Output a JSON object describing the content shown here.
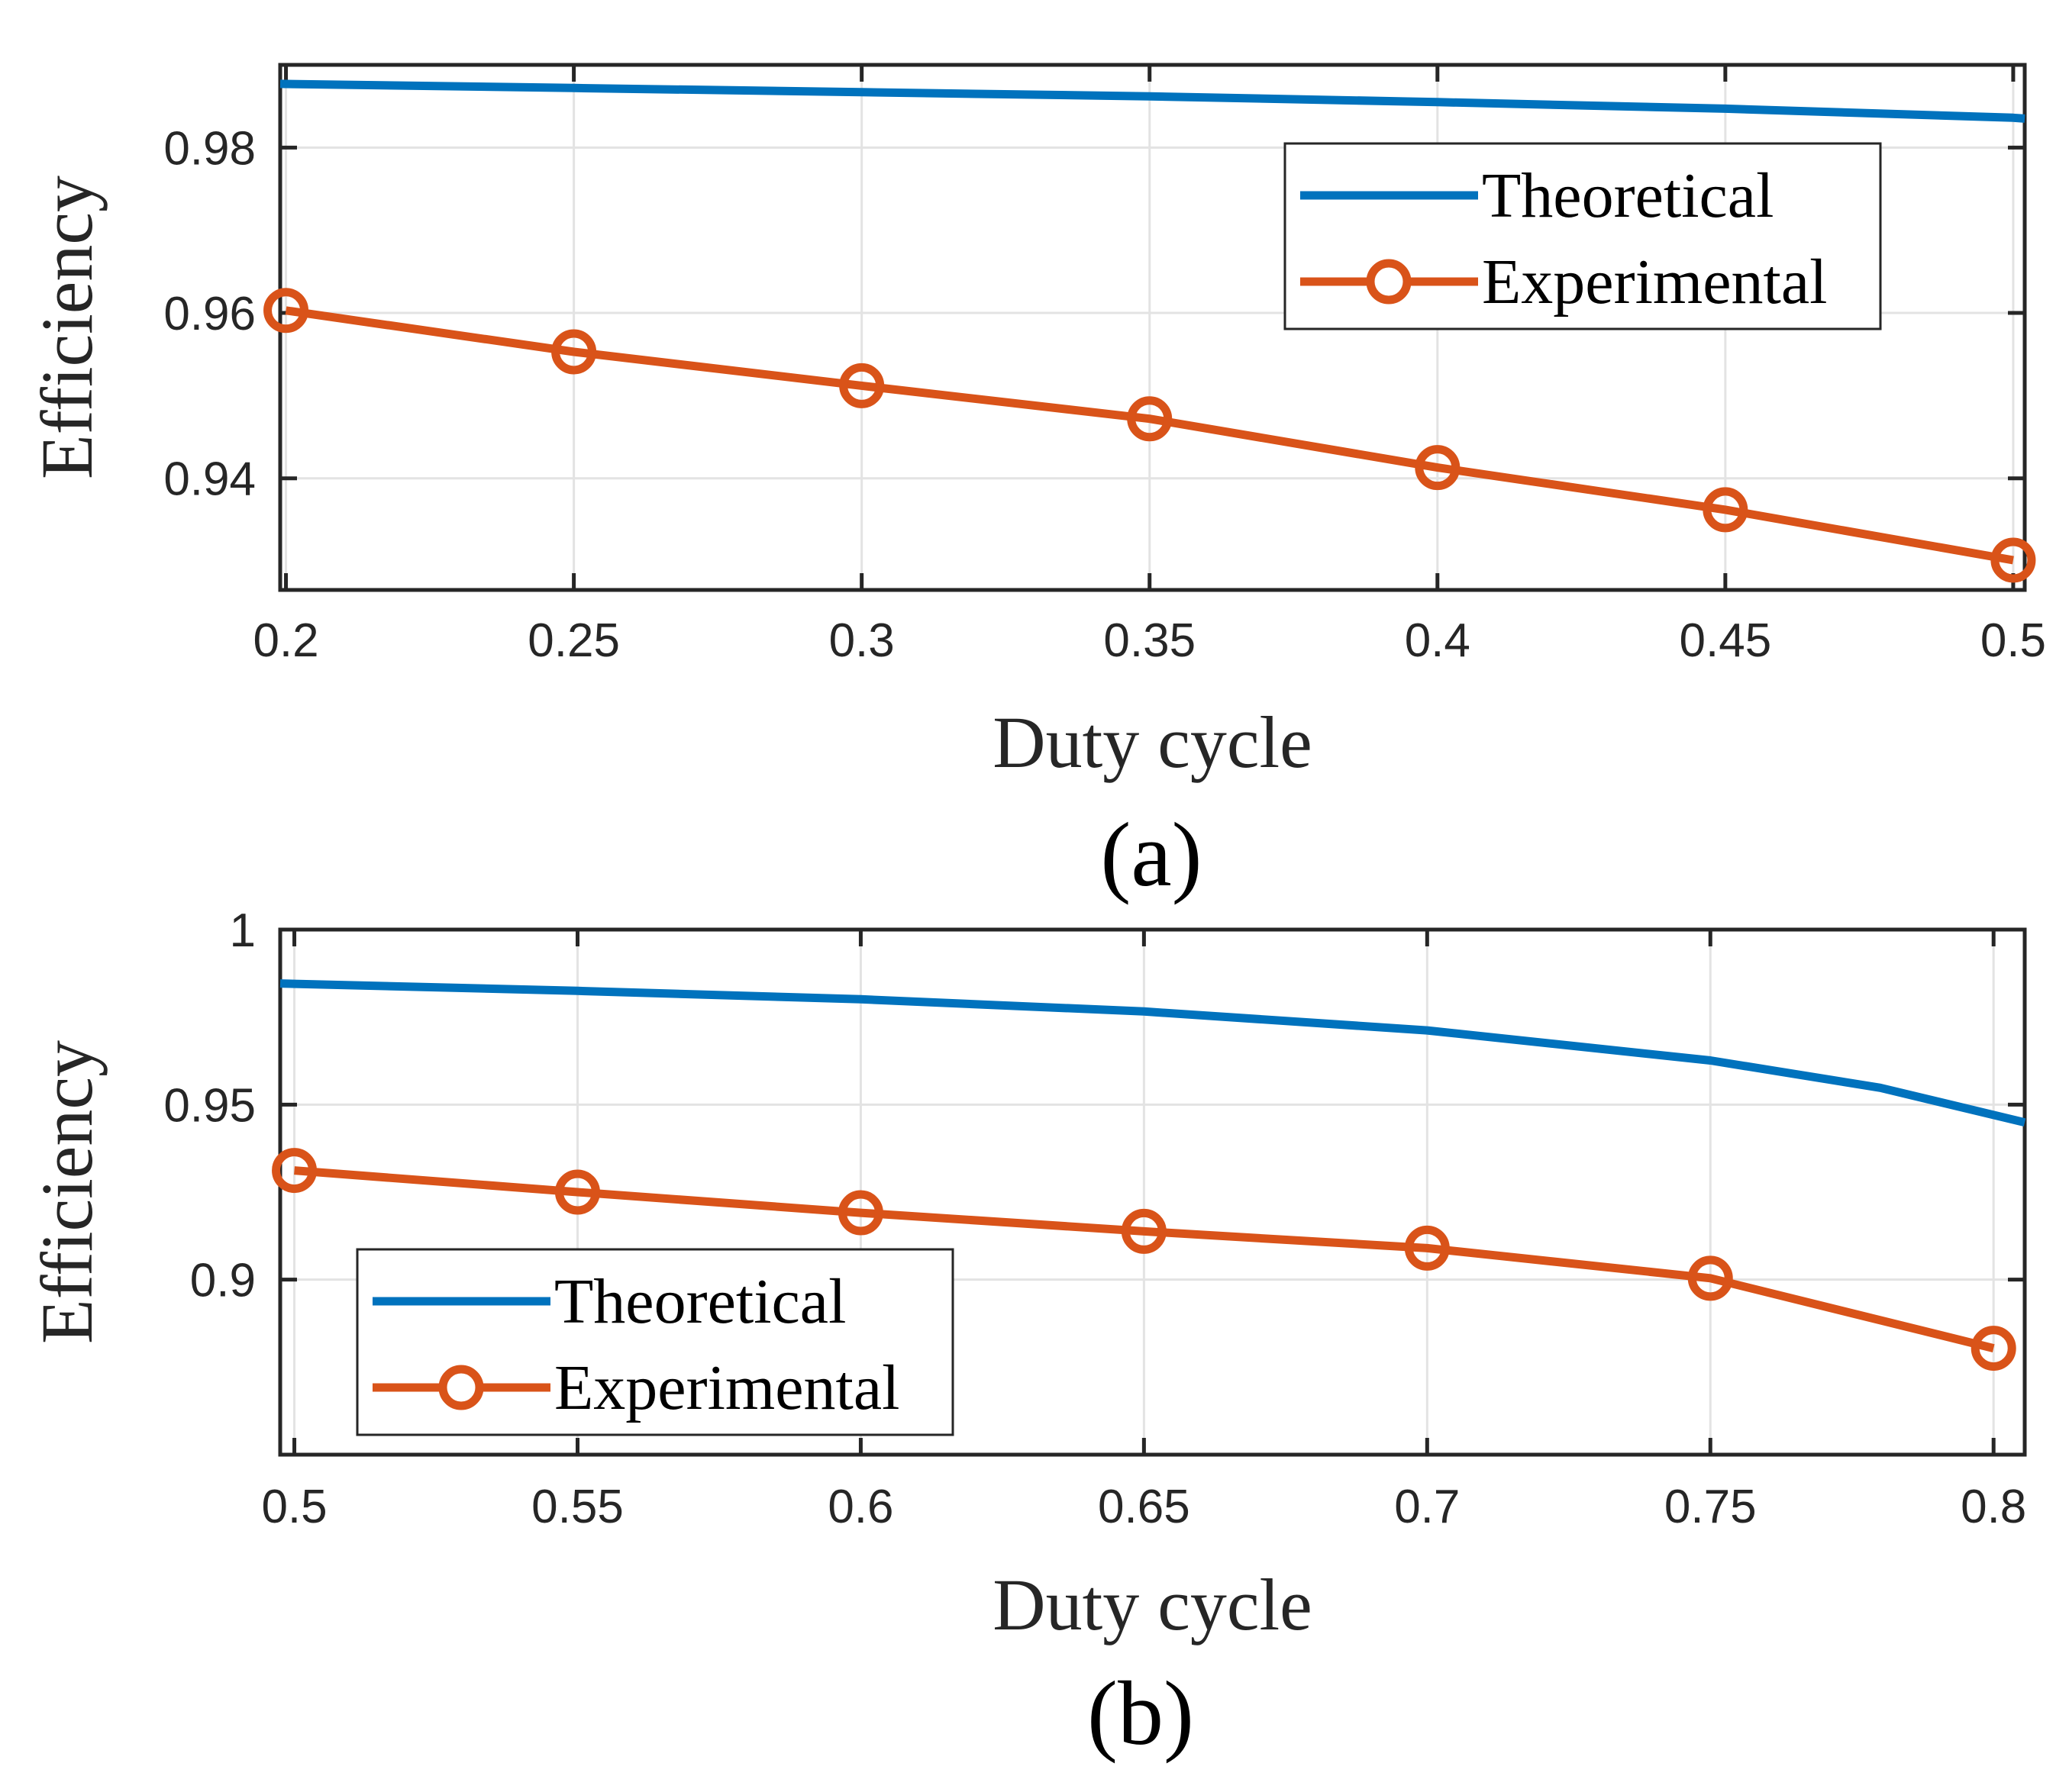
{
  "chart_data": [
    {
      "id": "a",
      "type": "line",
      "caption": "(a)",
      "xlabel": "Duty cycle",
      "ylabel": "Efficiency",
      "xlim": [
        0.199,
        0.502
      ],
      "ylim": [
        0.9265,
        0.99
      ],
      "xticks": [
        0.2,
        0.25,
        0.3,
        0.35,
        0.4,
        0.45,
        0.5
      ],
      "xtick_labels": [
        "0.2",
        "0.25",
        "0.3",
        "0.35",
        "0.4",
        "0.45",
        "0.5"
      ],
      "yticks": [
        0.94,
        0.96,
        0.98
      ],
      "ytick_labels": [
        "0.94",
        "0.96",
        "0.98"
      ],
      "grid": true,
      "legend_position": "top-right",
      "series": [
        {
          "name": "Theoretical",
          "color": "#0072BD",
          "marker": "none",
          "x": [
            0.199,
            0.25,
            0.3,
            0.35,
            0.4,
            0.45,
            0.5,
            0.502
          ],
          "values": [
            0.9877,
            0.9872,
            0.9867,
            0.9862,
            0.9855,
            0.9847,
            0.9836,
            0.9835
          ]
        },
        {
          "name": "Experimental",
          "color": "#D95319",
          "marker": "circle",
          "x": [
            0.2,
            0.25,
            0.3,
            0.35,
            0.4,
            0.45,
            0.5
          ],
          "values": [
            0.9603,
            0.9553,
            0.9512,
            0.9472,
            0.9413,
            0.9362,
            0.9301
          ]
        }
      ]
    },
    {
      "id": "b",
      "type": "line",
      "caption": "(b)",
      "xlabel": "Duty cycle",
      "ylabel": "Efficiency",
      "xlim": [
        0.4975,
        0.8055
      ],
      "ylim": [
        0.85,
        1.0
      ],
      "xticks": [
        0.5,
        0.55,
        0.6,
        0.65,
        0.7,
        0.75,
        0.8
      ],
      "xtick_labels": [
        "0.5",
        "0.55",
        "0.6",
        "0.65",
        "0.7",
        "0.75",
        "0.8"
      ],
      "yticks": [
        0.9,
        0.95,
        1.0
      ],
      "ytick_labels": [
        "0.9",
        "0.95",
        "1"
      ],
      "grid": true,
      "legend_position": "bottom-left",
      "series": [
        {
          "name": "Theoretical",
          "color": "#0072BD",
          "marker": "none",
          "x": [
            0.4975,
            0.55,
            0.6,
            0.65,
            0.7,
            0.75,
            0.78,
            0.8055
          ],
          "values": [
            0.9846,
            0.9825,
            0.9801,
            0.9766,
            0.9712,
            0.9626,
            0.9548,
            0.9449
          ]
        },
        {
          "name": "Experimental",
          "color": "#D95319",
          "marker": "circle",
          "x": [
            0.5,
            0.55,
            0.6,
            0.65,
            0.7,
            0.75,
            0.8
          ],
          "values": [
            0.9312,
            0.925,
            0.9191,
            0.9138,
            0.909,
            0.9004,
            0.8804
          ]
        }
      ]
    }
  ]
}
